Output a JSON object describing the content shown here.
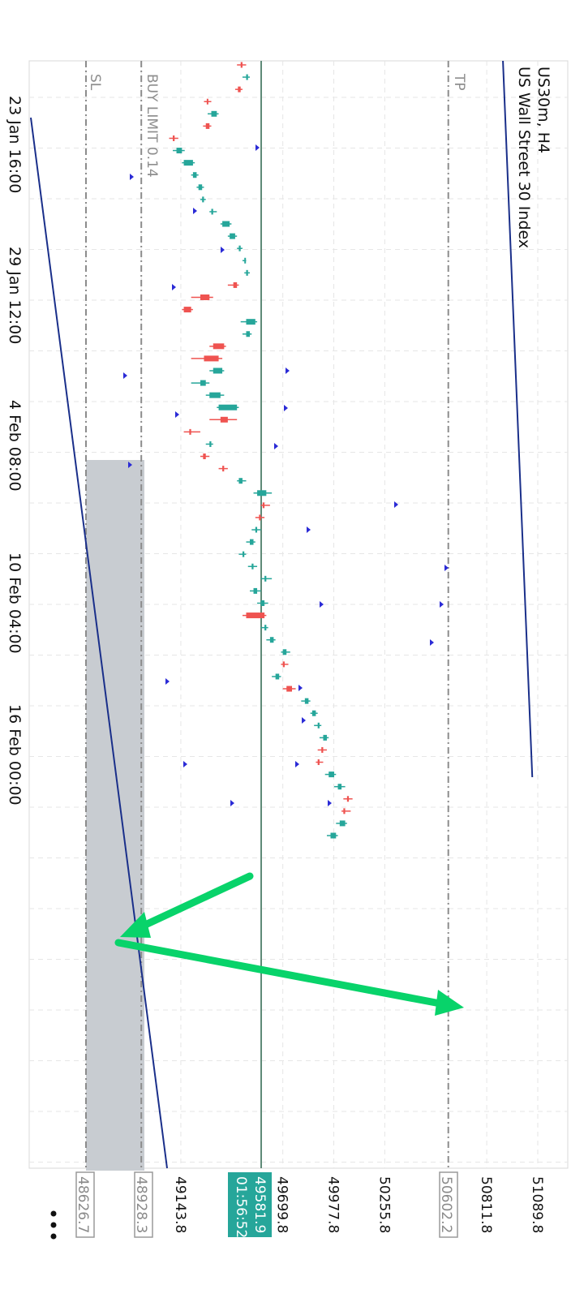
{
  "header": {
    "symbol": "US30m, H4",
    "description": "US Wall Street 30 Index"
  },
  "levels": {
    "tp": {
      "label": "TP",
      "price": "50602.2"
    },
    "buy_limit": {
      "label": "BUY LIMIT 0.14",
      "price": "48928.3"
    },
    "sl": {
      "label": "SL",
      "price": "48626.7"
    },
    "current": {
      "price": "49581.9",
      "countdown": "01:56:52"
    }
  },
  "more_menu": {
    "icon": "more-dots-icon"
  },
  "colors": {
    "bull": "#26a69a",
    "bear": "#ef5350",
    "trendline": "#1a2f8a",
    "arrow": "#08d36a",
    "current_line": "#5f8a78",
    "zone": "#c8ccd1",
    "grid": "#e6e6e6",
    "marker": "#2b2bd6"
  },
  "chart_data": {
    "type": "candlestick",
    "symbol": "US30m",
    "timeframe": "H4",
    "y_axis_ticks": [
      "48626.7",
      "48928.3",
      "49143.8",
      "49581.9",
      "49699.8",
      "49977.8",
      "50255.8",
      "50602.2",
      "50811.8",
      "51089.8"
    ],
    "x_axis_ticks": [
      "23 Jan 16:00",
      "29 Jan 12:00",
      "4 Feb 08:00",
      "10 Feb 04:00",
      "16 Feb 00:00"
    ],
    "y_range": [
      48480,
      51170
    ],
    "tp": 50602.2,
    "buy_limit": 48928.3,
    "sl": 48626.7,
    "current_price": 49581.9,
    "candles_ohlc": [
      [
        49480,
        49500,
        49450,
        49470
      ],
      [
        49500,
        49520,
        49480,
        49510
      ],
      [
        49470,
        49480,
        49440,
        49455
      ],
      [
        49290,
        49310,
        49270,
        49285
      ],
      [
        49310,
        49350,
        49290,
        49340
      ],
      [
        49300,
        49310,
        49265,
        49280
      ],
      [
        49110,
        49130,
        49080,
        49100
      ],
      [
        49120,
        49165,
        49100,
        49150
      ],
      [
        49160,
        49220,
        49150,
        49210
      ],
      [
        49210,
        49240,
        49200,
        49230
      ],
      [
        49240,
        49270,
        49230,
        49260
      ],
      [
        49260,
        49280,
        49250,
        49270
      ],
      [
        49310,
        49340,
        49300,
        49320
      ],
      [
        49370,
        49420,
        49360,
        49410
      ],
      [
        49410,
        49450,
        49400,
        49440
      ],
      [
        49460,
        49480,
        49450,
        49470
      ],
      [
        49490,
        49500,
        49480,
        49495
      ],
      [
        49500,
        49520,
        49490,
        49510
      ],
      [
        49450,
        49460,
        49400,
        49430
      ],
      [
        49300,
        49320,
        49200,
        49250
      ],
      [
        49200,
        49210,
        49150,
        49160
      ],
      [
        49500,
        49560,
        49470,
        49550
      ],
      [
        49500,
        49530,
        49480,
        49520
      ],
      [
        49380,
        49390,
        49300,
        49320
      ],
      [
        49350,
        49370,
        49200,
        49270
      ],
      [
        49320,
        49380,
        49300,
        49370
      ],
      [
        49250,
        49300,
        49200,
        49280
      ],
      [
        49300,
        49380,
        49280,
        49360
      ],
      [
        49350,
        49460,
        49340,
        49450
      ],
      [
        49400,
        49450,
        49300,
        49360
      ],
      [
        49200,
        49250,
        49160,
        49190
      ],
      [
        49300,
        49320,
        49280,
        49310
      ],
      [
        49280,
        49300,
        49250,
        49265
      ],
      [
        49380,
        49400,
        49350,
        49370
      ],
      [
        49460,
        49500,
        49450,
        49480
      ],
      [
        49560,
        49640,
        49540,
        49610
      ],
      [
        49600,
        49630,
        49580,
        49590
      ],
      [
        49580,
        49600,
        49550,
        49570
      ],
      [
        49550,
        49580,
        49530,
        49560
      ],
      [
        49520,
        49550,
        49500,
        49540
      ],
      [
        49480,
        49500,
        49460,
        49490
      ],
      [
        49530,
        49560,
        49510,
        49540
      ],
      [
        49600,
        49640,
        49580,
        49610
      ],
      [
        49540,
        49580,
        49520,
        49560
      ],
      [
        49580,
        49620,
        49560,
        49600
      ],
      [
        49600,
        49610,
        49480,
        49500
      ],
      [
        49600,
        49620,
        49580,
        49610
      ],
      [
        49630,
        49660,
        49610,
        49650
      ],
      [
        49700,
        49740,
        49690,
        49720
      ],
      [
        49710,
        49730,
        49690,
        49700
      ],
      [
        49660,
        49690,
        49640,
        49680
      ],
      [
        49750,
        49770,
        49700,
        49720
      ],
      [
        49820,
        49850,
        49800,
        49840
      ],
      [
        49860,
        49890,
        49850,
        49880
      ],
      [
        49890,
        49910,
        49870,
        49900
      ],
      [
        49920,
        49950,
        49900,
        49940
      ],
      [
        49920,
        49940,
        49890,
        49910
      ],
      [
        49900,
        49920,
        49880,
        49890
      ],
      [
        49950,
        49990,
        49930,
        49980
      ],
      [
        50000,
        50040,
        49980,
        50020
      ],
      [
        50060,
        50080,
        50030,
        50050
      ],
      [
        50040,
        50070,
        50020,
        50030
      ],
      [
        50010,
        50050,
        49990,
        50040
      ],
      [
        49960,
        50000,
        49940,
        49990
      ]
    ],
    "trend_channel": {
      "upper_start": 50900,
      "upper_end": 51060,
      "lower_start": 48500,
      "lower_end": 49020
    }
  }
}
